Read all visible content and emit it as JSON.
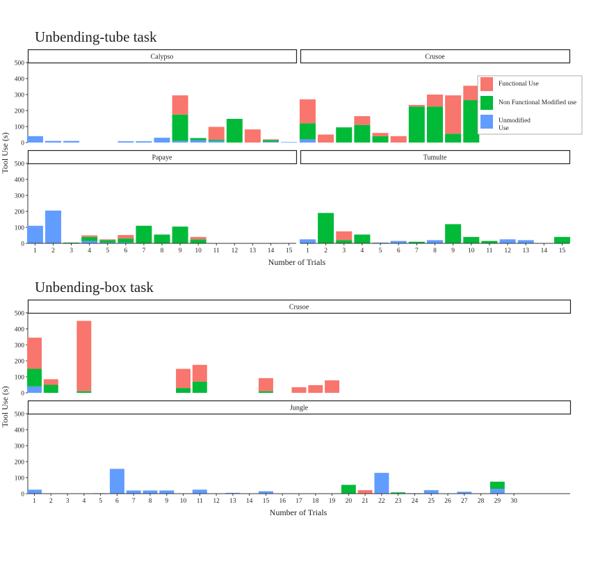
{
  "colors": {
    "functional": "#F8766D",
    "non_functional": "#00BA38",
    "unmodified": "#619CFF"
  },
  "legend": {
    "items": [
      {
        "key": "functional",
        "label": "Functional Use"
      },
      {
        "key": "non_functional",
        "label": "Non Functional Modified use"
      },
      {
        "key": "unmodified",
        "label": "Unmodified Use"
      }
    ]
  },
  "chart_data": [
    {
      "type": "bar",
      "stacked": true,
      "title": "Unbending-tube task",
      "xlabel": "Number of Trials",
      "ylabel": "Tool Use (s)",
      "x": [
        1,
        2,
        3,
        4,
        5,
        6,
        7,
        8,
        9,
        10,
        11,
        12,
        13,
        14,
        15
      ],
      "ylim": [
        0,
        500
      ],
      "yticks": [
        0,
        100,
        200,
        300,
        400,
        500
      ],
      "legend_position": "right",
      "facets": [
        {
          "name": "Calypso",
          "unmodified": [
            40,
            10,
            10,
            0,
            0,
            8,
            8,
            30,
            10,
            15,
            10,
            0,
            0,
            5,
            3
          ],
          "non_functional": [
            0,
            0,
            0,
            0,
            0,
            0,
            0,
            0,
            165,
            13,
            8,
            148,
            0,
            10,
            0
          ],
          "functional": [
            0,
            0,
            0,
            0,
            0,
            0,
            0,
            0,
            120,
            0,
            80,
            0,
            82,
            5,
            0
          ]
        },
        {
          "name": "Crusoe",
          "unmodified": [
            20,
            0,
            0,
            0,
            0,
            0,
            0,
            0,
            0,
            0
          ],
          "non_functional": [
            100,
            0,
            95,
            110,
            40,
            0,
            225,
            225,
            55,
            265
          ],
          "functional": [
            150,
            50,
            0,
            55,
            20,
            40,
            10,
            75,
            240,
            90
          ]
        },
        {
          "name": "Papaye",
          "unmodified": [
            110,
            205,
            0,
            15,
            5,
            5,
            0,
            0,
            0,
            0
          ],
          "non_functional": [
            0,
            0,
            5,
            25,
            15,
            25,
            110,
            55,
            105,
            25
          ],
          "functional": [
            0,
            0,
            0,
            10,
            5,
            22,
            0,
            0,
            0,
            15
          ]
        },
        {
          "name": "Tumulte",
          "unmodified": [
            25,
            0,
            0,
            0,
            5,
            15,
            0,
            20,
            0,
            0,
            0,
            25,
            20,
            0,
            0
          ],
          "non_functional": [
            0,
            190,
            20,
            55,
            0,
            0,
            10,
            0,
            120,
            40,
            15,
            0,
            0,
            0,
            40
          ],
          "functional": [
            0,
            0,
            55,
            0,
            0,
            0,
            0,
            0,
            0,
            0,
            0,
            0,
            0,
            0,
            0
          ]
        }
      ]
    },
    {
      "type": "bar",
      "stacked": true,
      "title": "Unbending-box task",
      "xlabel": "Number of Trials",
      "ylabel": "Tool Use (s)",
      "x": [
        1,
        2,
        3,
        4,
        5,
        6,
        7,
        8,
        9,
        10,
        11,
        12,
        13,
        14,
        15,
        16,
        17,
        18,
        19,
        20,
        21,
        22,
        23,
        24,
        25,
        26,
        27,
        28,
        29,
        30
      ],
      "ylim": [
        0,
        500
      ],
      "yticks": [
        0,
        100,
        200,
        300,
        400,
        500
      ],
      "facets": [
        {
          "name": "Crusoe",
          "unmodified": [
            40,
            0,
            0,
            0,
            0,
            0,
            0,
            0,
            0,
            0,
            0,
            0,
            0,
            0,
            0,
            0,
            0,
            0,
            0
          ],
          "non_functional": [
            110,
            50,
            0,
            10,
            0,
            0,
            0,
            0,
            0,
            30,
            70,
            0,
            0,
            0,
            10,
            0,
            0,
            0,
            0
          ],
          "functional": [
            195,
            35,
            0,
            440,
            0,
            0,
            0,
            0,
            0,
            120,
            105,
            0,
            0,
            0,
            82,
            0,
            35,
            48,
            78
          ]
        },
        {
          "name": "Jungle",
          "unmodified": [
            25,
            2,
            0,
            2,
            3,
            155,
            20,
            20,
            20,
            0,
            25,
            0,
            5,
            0,
            15,
            0,
            0,
            0,
            0,
            0,
            0,
            130,
            0,
            3,
            22,
            0,
            12,
            0,
            30,
            0
          ],
          "non_functional": [
            0,
            0,
            0,
            0,
            0,
            0,
            0,
            0,
            0,
            0,
            0,
            0,
            0,
            0,
            0,
            0,
            0,
            0,
            0,
            55,
            0,
            0,
            8,
            0,
            0,
            0,
            0,
            0,
            45,
            0
          ],
          "functional": [
            0,
            0,
            0,
            0,
            0,
            0,
            0,
            0,
            0,
            0,
            0,
            0,
            0,
            0,
            0,
            0,
            0,
            0,
            0,
            0,
            22,
            0,
            0,
            0,
            0,
            0,
            0,
            0,
            0,
            0
          ]
        }
      ]
    }
  ]
}
